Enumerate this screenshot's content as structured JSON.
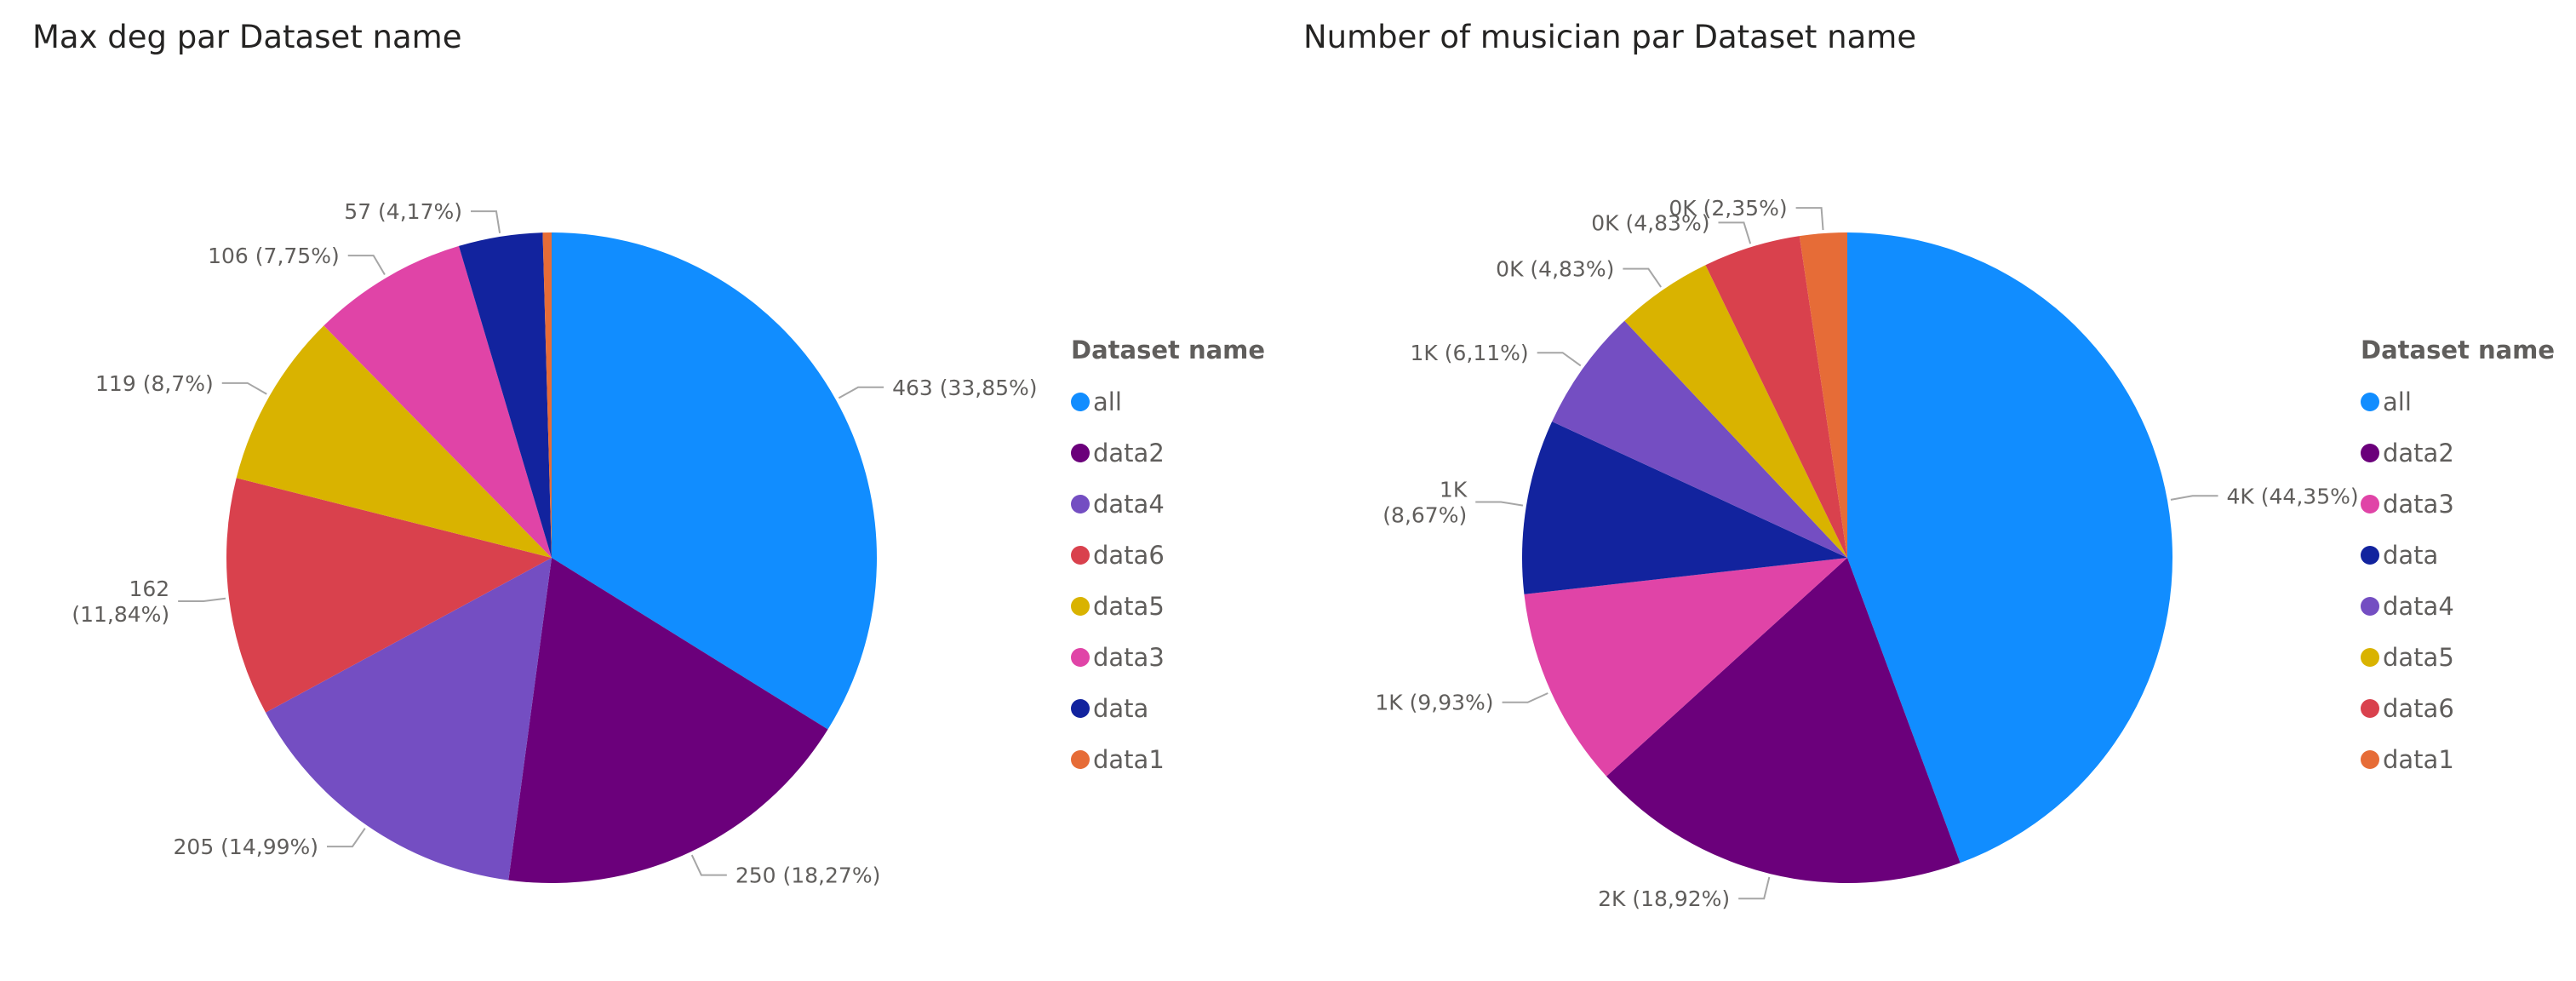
{
  "chart_data": [
    {
      "type": "pie",
      "title": "Max deg par Dataset name",
      "legend_title": "Dataset name",
      "legend_position": "right",
      "slices": [
        {
          "name": "all",
          "value": 463,
          "label": "463 (33,85%)",
          "color": "#118dff"
        },
        {
          "name": "data2",
          "value": 250,
          "label": "250 (18,27%)",
          "color": "#6b007b"
        },
        {
          "name": "data4",
          "value": 205,
          "label": "205 (14,99%)",
          "color": "#744ec2"
        },
        {
          "name": "data6",
          "value": 162,
          "label": "162 (11,84%)",
          "color": "#d9414d"
        },
        {
          "name": "data5",
          "value": 119,
          "label": "119 (8,7%)",
          "color": "#d9b300"
        },
        {
          "name": "data3",
          "value": 106,
          "label": "106 (7,75%)",
          "color": "#e044a7"
        },
        {
          "name": "data",
          "value": 57,
          "label": "57 (4,17%)",
          "color": "#12239e"
        },
        {
          "name": "data1",
          "value": 6,
          "label": "",
          "color": "#e66c37"
        }
      ]
    },
    {
      "type": "pie",
      "title": "Number of musician par Dataset name",
      "legend_title": "Dataset name",
      "legend_position": "right",
      "slices": [
        {
          "name": "all",
          "value": 44.35,
          "label": "4K (44,35%)",
          "color": "#118dff"
        },
        {
          "name": "data2",
          "value": 18.92,
          "label": "2K (18,92%)",
          "color": "#6b007b"
        },
        {
          "name": "data3",
          "value": 9.93,
          "label": "1K (9,93%)",
          "color": "#e044a7"
        },
        {
          "name": "data",
          "value": 8.67,
          "label": "1K (8,67%)",
          "color": "#12239e"
        },
        {
          "name": "data4",
          "value": 6.11,
          "label": "1K (6,11%)",
          "color": "#744ec2"
        },
        {
          "name": "data5",
          "value": 4.83,
          "label": "0K (4,83%)",
          "color": "#d9b300"
        },
        {
          "name": "data6",
          "value": 4.83,
          "label": "0K (4,83%)",
          "color": "#d9414d"
        },
        {
          "name": "data1",
          "value": 2.35,
          "label": "0K (2,35%)",
          "color": "#e66c37"
        }
      ]
    }
  ]
}
